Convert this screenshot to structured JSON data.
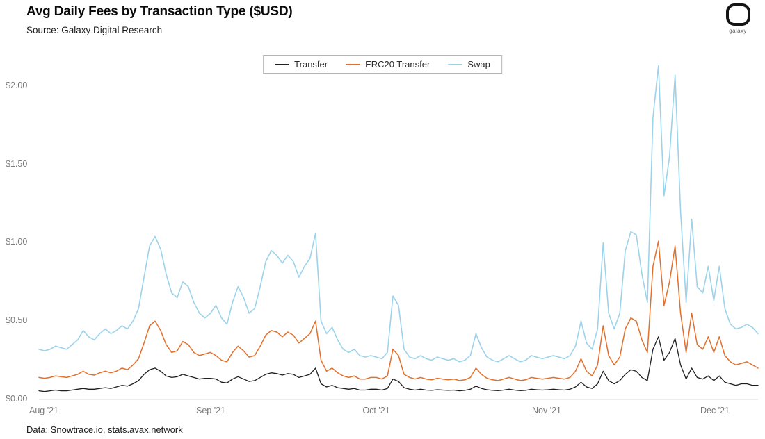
{
  "header": {
    "title": "Avg Daily Fees by Transaction Type ($USD)",
    "subtitle": "Source: Galaxy Digital Research"
  },
  "logo": {
    "label": "galaxy"
  },
  "footer": {
    "source_note": "Data: Snowtrace.io, stats.avax.network"
  },
  "chart_data": {
    "type": "line",
    "title": "Avg Daily Fees by Transaction Type ($USD)",
    "x_unit": "day",
    "x_range_note": "daily points, day 0 = Aug 1 2021 through early Dec 2021",
    "x_tick_labels": [
      "Aug '21",
      "Sep '21",
      "Oct '21",
      "Nov '21",
      "Dec '21"
    ],
    "x_tick_positions": [
      0,
      31,
      61,
      92,
      122
    ],
    "y_tick_labels": [
      "$0.00",
      "$0.50",
      "$1.00",
      "$1.50",
      "$2.00"
    ],
    "y_tick_values": [
      0,
      0.5,
      1.0,
      1.5,
      2.0
    ],
    "ylim": [
      0,
      2.25
    ],
    "grid": false,
    "legend_position": "top-center",
    "series": [
      {
        "name": "Transfer",
        "color": "#1f1f1f",
        "values": [
          0.055,
          0.05,
          0.055,
          0.06,
          0.055,
          0.055,
          0.06,
          0.065,
          0.07,
          0.065,
          0.065,
          0.07,
          0.075,
          0.07,
          0.08,
          0.09,
          0.085,
          0.1,
          0.12,
          0.16,
          0.19,
          0.2,
          0.18,
          0.15,
          0.14,
          0.145,
          0.16,
          0.15,
          0.14,
          0.13,
          0.135,
          0.135,
          0.13,
          0.11,
          0.105,
          0.13,
          0.145,
          0.13,
          0.115,
          0.12,
          0.14,
          0.16,
          0.17,
          0.165,
          0.155,
          0.165,
          0.16,
          0.14,
          0.15,
          0.16,
          0.2,
          0.1,
          0.08,
          0.09,
          0.075,
          0.07,
          0.065,
          0.07,
          0.06,
          0.06,
          0.065,
          0.065,
          0.06,
          0.07,
          0.13,
          0.115,
          0.075,
          0.065,
          0.06,
          0.065,
          0.06,
          0.058,
          0.062,
          0.06,
          0.058,
          0.06,
          0.055,
          0.058,
          0.065,
          0.085,
          0.07,
          0.062,
          0.058,
          0.056,
          0.06,
          0.065,
          0.06,
          0.056,
          0.058,
          0.065,
          0.062,
          0.06,
          0.062,
          0.065,
          0.062,
          0.06,
          0.065,
          0.08,
          0.11,
          0.08,
          0.07,
          0.1,
          0.18,
          0.12,
          0.1,
          0.12,
          0.16,
          0.19,
          0.18,
          0.14,
          0.12,
          0.32,
          0.4,
          0.25,
          0.3,
          0.39,
          0.22,
          0.13,
          0.2,
          0.14,
          0.13,
          0.15,
          0.12,
          0.15,
          0.11,
          0.1,
          0.09,
          0.1,
          0.1,
          0.09,
          0.09
        ]
      },
      {
        "name": "ERC20 Transfer",
        "color": "#e2702c",
        "values": [
          0.14,
          0.135,
          0.14,
          0.15,
          0.145,
          0.14,
          0.15,
          0.16,
          0.18,
          0.16,
          0.155,
          0.17,
          0.18,
          0.17,
          0.18,
          0.2,
          0.19,
          0.22,
          0.26,
          0.36,
          0.47,
          0.5,
          0.44,
          0.35,
          0.3,
          0.31,
          0.37,
          0.35,
          0.3,
          0.28,
          0.29,
          0.3,
          0.28,
          0.25,
          0.24,
          0.3,
          0.34,
          0.31,
          0.27,
          0.28,
          0.34,
          0.41,
          0.44,
          0.43,
          0.4,
          0.43,
          0.41,
          0.36,
          0.39,
          0.42,
          0.5,
          0.25,
          0.18,
          0.2,
          0.17,
          0.15,
          0.14,
          0.15,
          0.13,
          0.13,
          0.14,
          0.14,
          0.13,
          0.15,
          0.32,
          0.28,
          0.16,
          0.14,
          0.13,
          0.14,
          0.13,
          0.125,
          0.135,
          0.13,
          0.125,
          0.13,
          0.12,
          0.125,
          0.14,
          0.2,
          0.16,
          0.135,
          0.125,
          0.12,
          0.13,
          0.14,
          0.13,
          0.12,
          0.125,
          0.14,
          0.135,
          0.13,
          0.135,
          0.14,
          0.135,
          0.13,
          0.14,
          0.18,
          0.26,
          0.18,
          0.15,
          0.22,
          0.47,
          0.28,
          0.22,
          0.27,
          0.45,
          0.52,
          0.5,
          0.38,
          0.3,
          0.85,
          1.01,
          0.6,
          0.75,
          0.98,
          0.55,
          0.3,
          0.55,
          0.35,
          0.32,
          0.4,
          0.3,
          0.4,
          0.28,
          0.24,
          0.22,
          0.23,
          0.24,
          0.22,
          0.2
        ]
      },
      {
        "name": "Swap",
        "color": "#9cd3eb",
        "values": [
          0.32,
          0.31,
          0.32,
          0.34,
          0.33,
          0.32,
          0.35,
          0.38,
          0.44,
          0.4,
          0.38,
          0.42,
          0.45,
          0.42,
          0.44,
          0.47,
          0.45,
          0.5,
          0.58,
          0.78,
          0.98,
          1.04,
          0.96,
          0.8,
          0.68,
          0.65,
          0.75,
          0.72,
          0.62,
          0.55,
          0.52,
          0.55,
          0.6,
          0.52,
          0.48,
          0.62,
          0.72,
          0.65,
          0.55,
          0.58,
          0.72,
          0.88,
          0.95,
          0.92,
          0.87,
          0.92,
          0.88,
          0.78,
          0.85,
          0.9,
          1.06,
          0.5,
          0.42,
          0.46,
          0.38,
          0.32,
          0.3,
          0.32,
          0.28,
          0.27,
          0.28,
          0.27,
          0.26,
          0.3,
          0.66,
          0.6,
          0.32,
          0.27,
          0.26,
          0.28,
          0.26,
          0.25,
          0.27,
          0.26,
          0.25,
          0.26,
          0.24,
          0.25,
          0.28,
          0.42,
          0.33,
          0.27,
          0.25,
          0.24,
          0.26,
          0.28,
          0.26,
          0.24,
          0.25,
          0.28,
          0.27,
          0.26,
          0.27,
          0.28,
          0.27,
          0.26,
          0.28,
          0.34,
          0.5,
          0.36,
          0.32,
          0.45,
          1.0,
          0.55,
          0.45,
          0.55,
          0.95,
          1.07,
          1.05,
          0.8,
          0.62,
          1.8,
          2.13,
          1.3,
          1.55,
          2.07,
          1.2,
          0.62,
          1.15,
          0.72,
          0.68,
          0.85,
          0.63,
          0.85,
          0.58,
          0.48,
          0.45,
          0.46,
          0.48,
          0.46,
          0.42
        ]
      }
    ]
  }
}
